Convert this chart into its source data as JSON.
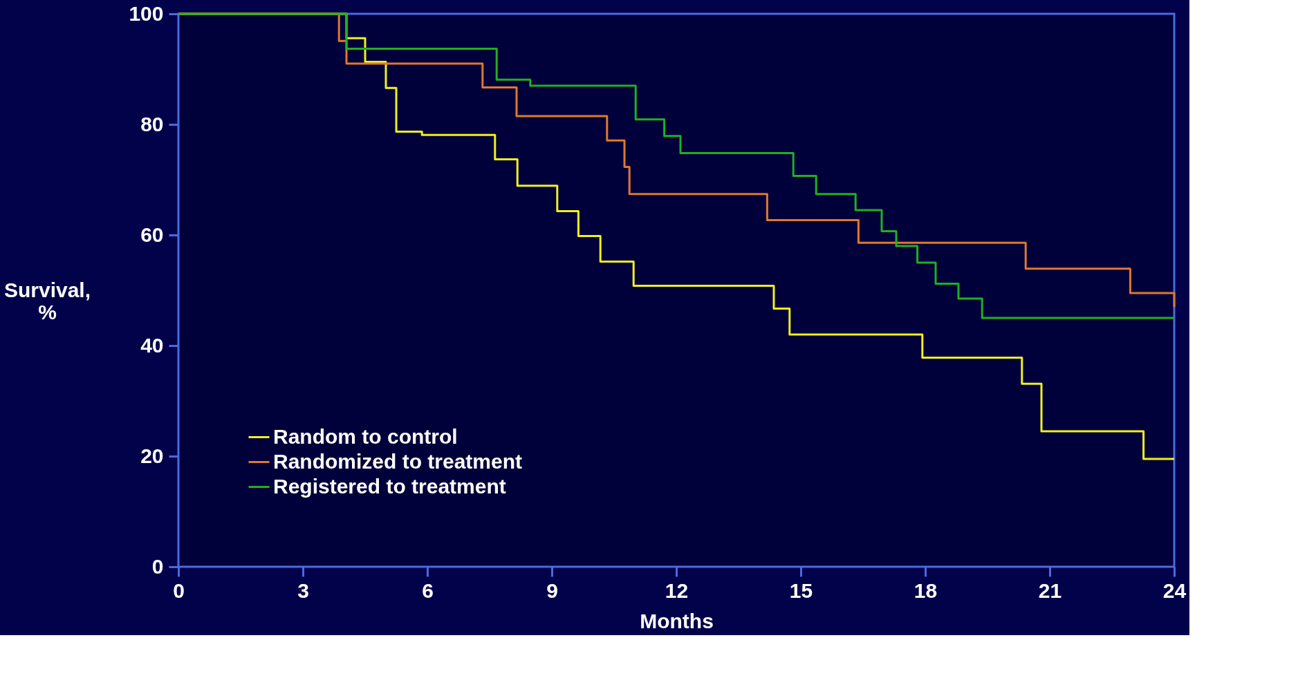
{
  "chart_data": {
    "type": "step",
    "xlabel": "Months",
    "ylabel": "Survival, %",
    "xlim": [
      0,
      24
    ],
    "xticks": [
      0,
      3,
      6,
      9,
      12,
      15,
      18,
      21,
      24
    ],
    "ylim": [
      0,
      100
    ],
    "yticks": [
      0,
      20,
      40,
      60,
      80,
      100
    ],
    "grid": false,
    "legend": "bottom left",
    "marker": "none",
    "line_style": "solid",
    "series": [
      {
        "name": "Random to control",
        "color": "#f0f020",
        "x": [
          0,
          4.05,
          4.5,
          5.0,
          5.25,
          5.87,
          7.63,
          8.17,
          9.13,
          9.64,
          10.17,
          10.97,
          14.35,
          14.73,
          17.93,
          20.33,
          20.8,
          23.26,
          24
        ],
        "values": [
          100,
          95.6,
          91.3,
          86.6,
          78.7,
          78.1,
          73.7,
          68.9,
          64.3,
          59.8,
          55.2,
          50.8,
          46.7,
          42.0,
          37.8,
          33.1,
          24.5,
          19.5,
          19.5
        ]
      },
      {
        "name": "Randomized to treatment",
        "color": "#e07830",
        "x": [
          0,
          3.87,
          4.05,
          7.33,
          8.15,
          10.33,
          10.75,
          10.87,
          14.19,
          16.39,
          20.42,
          22.94,
          24
        ],
        "values": [
          100,
          95.1,
          91.0,
          86.7,
          81.5,
          77.1,
          72.3,
          67.4,
          62.7,
          58.6,
          53.9,
          49.5,
          47
        ]
      },
      {
        "name": "Registered to treatment",
        "color": "#20b020",
        "x": [
          0,
          4.05,
          7.67,
          8.48,
          11.02,
          11.71,
          12.1,
          14.82,
          15.37,
          16.32,
          16.95,
          17.3,
          17.81,
          18.25,
          18.8,
          19.37,
          24
        ],
        "values": [
          100,
          93.7,
          88.1,
          87.0,
          80.9,
          77.9,
          74.8,
          70.7,
          67.4,
          64.5,
          60.7,
          58.0,
          55.0,
          51.2,
          48.5,
          45.0,
          45.0
        ]
      }
    ]
  }
}
